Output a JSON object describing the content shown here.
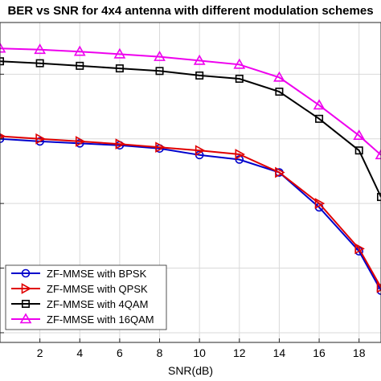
{
  "chart_data": {
    "type": "line",
    "title": "BER vs SNR for 4x4 antenna with different modulation schemes",
    "xlabel": "SNR(dB)",
    "ylabel": "",
    "x_ticks": [
      2,
      4,
      6,
      8,
      10,
      12,
      14,
      16,
      18
    ],
    "xlim": [
      0,
      19.1
    ],
    "y_scale": "log",
    "ylim_exp": [
      -6.15,
      -1.2
    ],
    "y_gridlines_exp": [
      -2,
      -3,
      -4,
      -5,
      -6
    ],
    "grid": true,
    "legend_position": "bottom-left",
    "series": [
      {
        "name": "ZF-MMSE with BPSK",
        "color": "#0000cc",
        "marker": "circle",
        "x": [
          0,
          2,
          4,
          6,
          8,
          10,
          12,
          14,
          16,
          18,
          19.1
        ],
        "y_exp": [
          -3.0,
          -3.04,
          -3.07,
          -3.1,
          -3.15,
          -3.25,
          -3.32,
          -3.52,
          -4.06,
          -4.74,
          -5.35
        ]
      },
      {
        "name": "ZF-MMSE with QPSK",
        "color": "#e00000",
        "marker": "triangle-right",
        "x": [
          0,
          2,
          4,
          6,
          8,
          10,
          12,
          14,
          16,
          18,
          19.1
        ],
        "y_exp": [
          -2.96,
          -3.0,
          -3.04,
          -3.08,
          -3.13,
          -3.18,
          -3.24,
          -3.52,
          -4.0,
          -4.7,
          -5.3
        ]
      },
      {
        "name": "ZF-MMSE with 4QAM",
        "color": "#000000",
        "marker": "square",
        "x": [
          0,
          2,
          4,
          6,
          8,
          10,
          12,
          14,
          16,
          18,
          19.1
        ],
        "y_exp": [
          -1.8,
          -1.83,
          -1.87,
          -1.91,
          -1.95,
          -2.02,
          -2.07,
          -2.27,
          -2.69,
          -3.18,
          -3.9
        ]
      },
      {
        "name": "ZF-MMSE with 16QAM",
        "color": "#ee00ee",
        "marker": "triangle-up",
        "x": [
          0,
          2,
          4,
          6,
          8,
          10,
          12,
          14,
          16,
          18,
          19.1
        ],
        "y_exp": [
          -1.6,
          -1.62,
          -1.65,
          -1.69,
          -1.73,
          -1.79,
          -1.85,
          -2.05,
          -2.48,
          -2.95,
          -3.25
        ]
      }
    ]
  }
}
